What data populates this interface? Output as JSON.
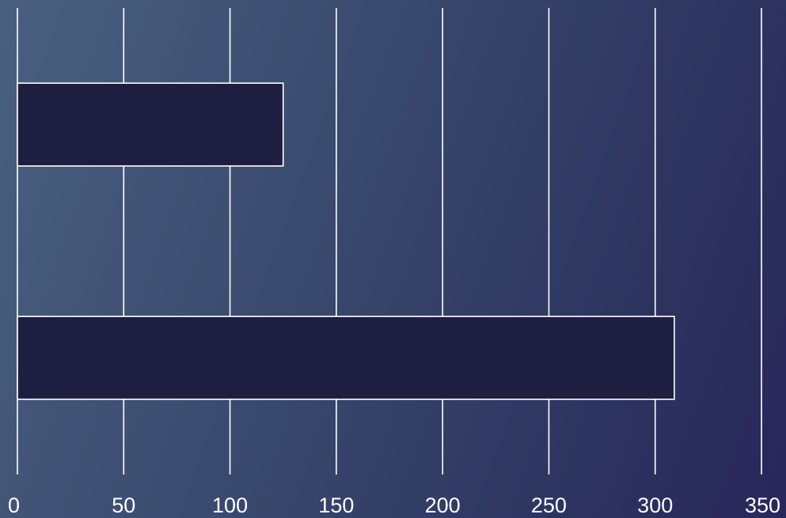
{
  "chart_data": {
    "type": "bar",
    "orientation": "horizontal",
    "series": [
      {
        "values": [
          125,
          309
        ]
      }
    ],
    "xlim": [
      0,
      350
    ],
    "x_ticks": [
      "0",
      "50",
      "100",
      "150",
      "200",
      "250",
      "300",
      "350"
    ],
    "grid": true,
    "legend": "none",
    "title": "",
    "xlabel": "",
    "ylabel": ""
  },
  "colors": {
    "bar_fill": "#1e1f40",
    "bar_stroke": "#ffffff",
    "gridline": "#ffffff",
    "tick_text": "#ffffff"
  }
}
